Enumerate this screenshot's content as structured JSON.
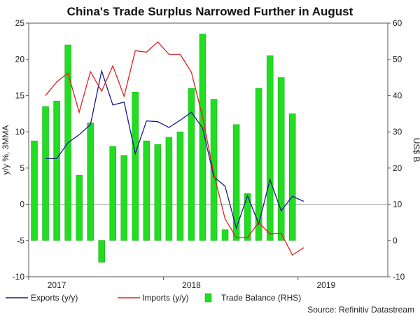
{
  "chart_data": {
    "type": "bar-line-combo",
    "title": "China's Trade Surplus Narrowed Further in August",
    "ylabel_left": "y/y %, 3MMA",
    "ylabel_right": "US$ B",
    "ylim_left": [
      -10,
      25
    ],
    "ylim_right": [
      -10,
      60
    ],
    "left_ticks": [
      -10,
      -5,
      0,
      5,
      10,
      15,
      20,
      25
    ],
    "right_ticks": [
      -10,
      0,
      10,
      20,
      30,
      40,
      50,
      60
    ],
    "year_labels": [
      {
        "label": "2017",
        "month_index": 2
      },
      {
        "label": "2018",
        "month_index": 14
      },
      {
        "label": "2019",
        "month_index": 26
      }
    ],
    "months": [
      "2017-01",
      "2017-02",
      "2017-03",
      "2017-04",
      "2017-05",
      "2017-06",
      "2017-07",
      "2017-08",
      "2017-09",
      "2017-10",
      "2017-11",
      "2017-12",
      "2018-01",
      "2018-02",
      "2018-03",
      "2018-04",
      "2018-05",
      "2018-06",
      "2018-07",
      "2018-08",
      "2018-09",
      "2018-10",
      "2018-11",
      "2018-12",
      "2019-01",
      "2019-02",
      "2019-03",
      "2019-04",
      "2019-05",
      "2019-06",
      "2019-07",
      "2019-08"
    ],
    "series": [
      {
        "name": "Exports (y/y)",
        "color": "#1a1a8c",
        "axis": "left",
        "kind": "line",
        "start_index": 1,
        "values": [
          6.3,
          6.3,
          8.5,
          9.6,
          11.0,
          18.4,
          13.7,
          14.1,
          7.0,
          11.5,
          11.4,
          10.6,
          11.6,
          12.7,
          10.5,
          3.8,
          2.5,
          -3.3,
          1.2,
          -2.7,
          3.4,
          -0.9,
          1.1,
          0.4
        ]
      },
      {
        "name": "Imports (y/y)",
        "color": "#dd2222",
        "axis": "left",
        "kind": "line",
        "start_index": 1,
        "values": [
          15.0,
          16.9,
          18.1,
          12.7,
          18.3,
          15.6,
          19.1,
          14.9,
          21.2,
          21.0,
          22.4,
          20.7,
          20.7,
          18.2,
          12.0,
          4.2,
          -2.0,
          -4.6,
          -4.6,
          -2.5,
          -4.1,
          -4.0,
          -7.0,
          -6.0
        ]
      },
      {
        "name": "Trade Balance (RHS)",
        "color": "#22dd22",
        "axis": "right",
        "kind": "bar",
        "start_index": 0,
        "values": [
          27.5,
          37.0,
          38.5,
          54.0,
          18.0,
          32.5,
          -6.0,
          26.0,
          23.5,
          41.0,
          27.5,
          26.5,
          28.5,
          30.0,
          42.0,
          57.0,
          39.0,
          3.0,
          32.0,
          13.0,
          42.0,
          51.0,
          45.0,
          35.0
        ]
      }
    ],
    "legend": [
      "Exports (y/y)",
      "Imports (y/y)",
      "Trade Balance (RHS)"
    ],
    "legend_placement": "bottom-left",
    "source": "Source: Refinitiv Datastream"
  }
}
